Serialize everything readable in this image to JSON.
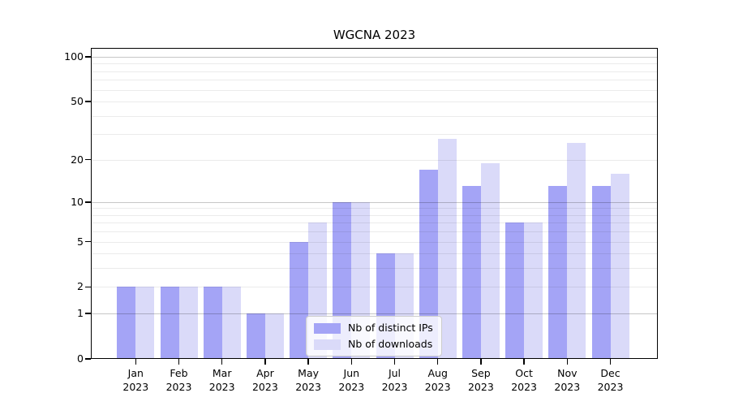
{
  "chart_data": {
    "type": "bar",
    "title": "WGCNA 2023",
    "categories": [
      [
        "Jan",
        "2023"
      ],
      [
        "Feb",
        "2023"
      ],
      [
        "Mar",
        "2023"
      ],
      [
        "Apr",
        "2023"
      ],
      [
        "May",
        "2023"
      ],
      [
        "Jun",
        "2023"
      ],
      [
        "Jul",
        "2023"
      ],
      [
        "Aug",
        "2023"
      ],
      [
        "Sep",
        "2023"
      ],
      [
        "Oct",
        "2023"
      ],
      [
        "Nov",
        "2023"
      ],
      [
        "Dec",
        "2023"
      ]
    ],
    "series": [
      {
        "name": "Nb of distinct IPs",
        "color": "#a4a4f6",
        "values": [
          2,
          2,
          2,
          1,
          5,
          10,
          4,
          17,
          13,
          7,
          13,
          13
        ]
      },
      {
        "name": "Nb of downloads",
        "color": "#dadaf9",
        "values": [
          2,
          2,
          2,
          1,
          7,
          10,
          4,
          28,
          19,
          7,
          26,
          16
        ]
      }
    ],
    "xlabel": "",
    "ylabel": "",
    "yscale": "log1p",
    "ylim": [
      0,
      100
    ],
    "yticks": [
      0,
      1,
      2,
      5,
      10,
      20,
      50,
      100
    ],
    "grid": {
      "on": true,
      "major_at": [
        1,
        10,
        100
      ],
      "minor_at": [
        2,
        3,
        4,
        5,
        6,
        7,
        8,
        9,
        20,
        30,
        40,
        50,
        60,
        70,
        80,
        90
      ]
    },
    "legend_position": "lower center inside plot"
  },
  "colors": {
    "series_ips": "#a4a4f6",
    "series_downloads": "#dadaf9",
    "grid_major": "rgba(0,0,0,0.22)",
    "grid_minor": "rgba(0,0,0,0.08)",
    "axis": "#000000",
    "background": "#ffffff"
  }
}
